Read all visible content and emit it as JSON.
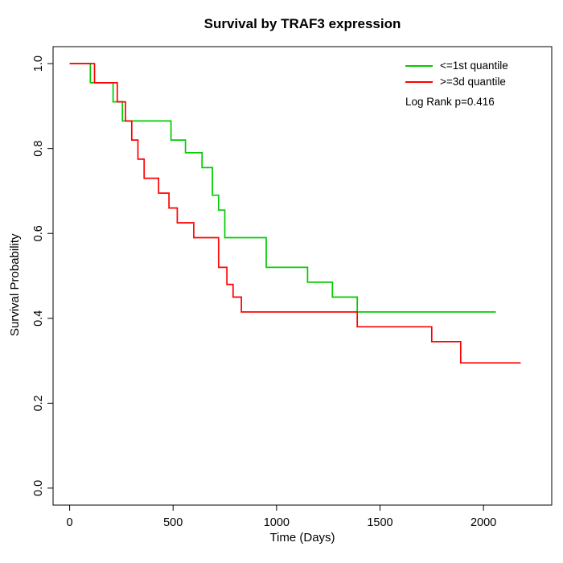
{
  "chart_data": {
    "type": "line",
    "subtype": "kaplan-meier-step",
    "title": "Survival by TRAF3 expression",
    "xlabel": "Time (Days)",
    "ylabel": "Survival Probability",
    "xlim": [
      -80,
      2330
    ],
    "ylim": [
      -0.04,
      1.04
    ],
    "xticks": [
      0,
      500,
      1000,
      1500,
      2000
    ],
    "yticks": [
      0.0,
      0.2,
      0.4,
      0.6,
      0.8,
      1.0
    ],
    "grid": false,
    "legend_position": "top-right",
    "annotation": "Log Rank p=0.416",
    "series": [
      {
        "name": "low-expression",
        "label": "<=1st quantile",
        "color": "#00cc00",
        "points": [
          [
            0,
            1.0
          ],
          [
            100,
            0.955
          ],
          [
            210,
            0.91
          ],
          [
            255,
            0.865
          ],
          [
            490,
            0.82
          ],
          [
            560,
            0.79
          ],
          [
            640,
            0.755
          ],
          [
            690,
            0.69
          ],
          [
            720,
            0.655
          ],
          [
            750,
            0.59
          ],
          [
            950,
            0.52
          ],
          [
            1150,
            0.485
          ],
          [
            1270,
            0.45
          ],
          [
            1390,
            0.415
          ]
        ],
        "end": 2060
      },
      {
        "name": "high-expression",
        "label": ">=3d quantile",
        "color": "#ff0000",
        "points": [
          [
            0,
            1.0
          ],
          [
            120,
            0.955
          ],
          [
            230,
            0.91
          ],
          [
            270,
            0.865
          ],
          [
            300,
            0.82
          ],
          [
            330,
            0.775
          ],
          [
            360,
            0.73
          ],
          [
            430,
            0.695
          ],
          [
            480,
            0.66
          ],
          [
            520,
            0.625
          ],
          [
            600,
            0.59
          ],
          [
            720,
            0.52
          ],
          [
            760,
            0.48
          ],
          [
            790,
            0.45
          ],
          [
            830,
            0.415
          ],
          [
            1390,
            0.38
          ],
          [
            1750,
            0.345
          ],
          [
            1890,
            0.295
          ]
        ],
        "end": 2180
      }
    ]
  }
}
